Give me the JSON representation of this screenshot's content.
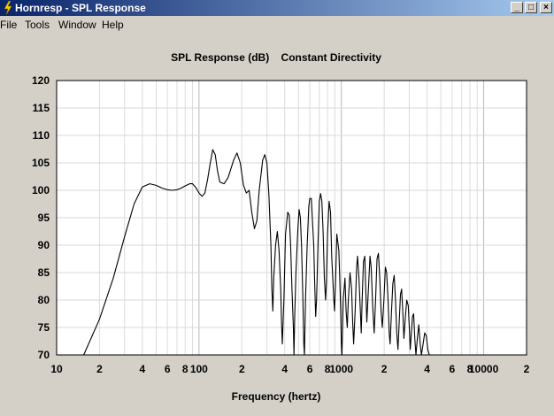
{
  "window": {
    "title": "Hornresp - SPL Response",
    "min_glyph": "_",
    "max_glyph": "□",
    "close_glyph": "×"
  },
  "menu": {
    "items": [
      "File",
      "Tools",
      "Window",
      "Help"
    ]
  },
  "chart_data": {
    "type": "line",
    "title": "SPL Response (dB)    Constant Directivity",
    "xlabel": "Frequency (hertz)",
    "ylabel": "",
    "x_scale": "log",
    "xlim": [
      10,
      20000
    ],
    "ylim": [
      70,
      120
    ],
    "grid": true,
    "y_ticks": [
      120,
      115,
      110,
      105,
      100,
      95,
      90,
      85,
      80,
      75,
      70
    ],
    "x_ticks": [
      {
        "v": 10,
        "label": "10"
      },
      {
        "v": 20,
        "label": "2"
      },
      {
        "v": 40,
        "label": "4"
      },
      {
        "v": 60,
        "label": "6"
      },
      {
        "v": 80,
        "label": "8"
      },
      {
        "v": 100,
        "label": "100"
      },
      {
        "v": 200,
        "label": "2"
      },
      {
        "v": 400,
        "label": "4"
      },
      {
        "v": 600,
        "label": "6"
      },
      {
        "v": 800,
        "label": "8"
      },
      {
        "v": 1000,
        "label": "1000"
      },
      {
        "v": 2000,
        "label": "2"
      },
      {
        "v": 4000,
        "label": "4"
      },
      {
        "v": 6000,
        "label": "6"
      },
      {
        "v": 8000,
        "label": "8"
      },
      {
        "v": 10000,
        "label": "10000"
      },
      {
        "v": 20000,
        "label": "2"
      }
    ],
    "series": [
      {
        "color": "#000000",
        "points": [
          [
            15.5,
            70
          ],
          [
            20,
            76.5
          ],
          [
            25,
            84
          ],
          [
            30,
            91.5
          ],
          [
            35,
            97.5
          ],
          [
            40,
            100.6
          ],
          [
            45,
            101.2
          ],
          [
            50,
            100.9
          ],
          [
            55,
            100.4
          ],
          [
            60,
            100.1
          ],
          [
            65,
            100
          ],
          [
            70,
            100.1
          ],
          [
            75,
            100.4
          ],
          [
            80,
            100.8
          ],
          [
            86,
            101.2
          ],
          [
            90,
            101.2
          ],
          [
            95,
            100.5
          ],
          [
            100,
            99.5
          ],
          [
            105,
            98.9
          ],
          [
            110,
            99.5
          ],
          [
            115,
            102
          ],
          [
            120,
            105
          ],
          [
            125,
            107.4
          ],
          [
            130,
            106.5
          ],
          [
            135,
            103.5
          ],
          [
            140,
            101.5
          ],
          [
            150,
            101.2
          ],
          [
            160,
            102.3
          ],
          [
            175,
            105.5
          ],
          [
            185,
            106.8
          ],
          [
            195,
            105
          ],
          [
            205,
            101
          ],
          [
            215,
            99.5
          ],
          [
            225,
            100
          ],
          [
            235,
            96
          ],
          [
            245,
            93
          ],
          [
            255,
            94.5
          ],
          [
            265,
            100
          ],
          [
            280,
            105.5
          ],
          [
            290,
            106.5
          ],
          [
            300,
            105
          ],
          [
            310,
            99
          ],
          [
            320,
            90
          ],
          [
            325,
            82
          ],
          [
            330,
            78
          ],
          [
            335,
            84
          ],
          [
            345,
            90
          ],
          [
            355,
            92.5
          ],
          [
            365,
            89
          ],
          [
            375,
            82
          ],
          [
            380,
            76
          ],
          [
            385,
            72
          ],
          [
            395,
            80
          ],
          [
            405,
            92
          ],
          [
            420,
            96
          ],
          [
            430,
            95.5
          ],
          [
            440,
            90
          ],
          [
            450,
            82
          ],
          [
            460,
            75
          ],
          [
            465,
            70
          ],
          [
            470,
            77
          ],
          [
            480,
            85
          ],
          [
            495,
            93
          ],
          [
            505,
            96.5
          ],
          [
            515,
            95
          ],
          [
            525,
            90
          ],
          [
            535,
            82
          ],
          [
            545,
            72
          ],
          [
            550,
            70
          ],
          [
            560,
            80
          ],
          [
            575,
            90
          ],
          [
            590,
            97
          ],
          [
            600,
            98.5
          ],
          [
            615,
            98.5
          ],
          [
            625,
            95
          ],
          [
            640,
            90
          ],
          [
            650,
            83
          ],
          [
            660,
            77
          ],
          [
            670,
            80
          ],
          [
            685,
            90
          ],
          [
            700,
            98
          ],
          [
            715,
            99.4
          ],
          [
            730,
            98
          ],
          [
            745,
            92
          ],
          [
            760,
            84
          ],
          [
            775,
            80
          ],
          [
            785,
            83
          ],
          [
            800,
            92
          ],
          [
            820,
            98
          ],
          [
            840,
            96
          ],
          [
            855,
            88
          ],
          [
            870,
            84
          ],
          [
            885,
            80
          ],
          [
            895,
            78
          ],
          [
            910,
            83
          ],
          [
            930,
            92
          ],
          [
            960,
            89
          ],
          [
            975,
            84
          ],
          [
            990,
            78
          ],
          [
            1000,
            72
          ],
          [
            1010,
            70
          ],
          [
            1030,
            80
          ],
          [
            1060,
            84
          ],
          [
            1080,
            78
          ],
          [
            1100,
            75
          ],
          [
            1120,
            80
          ],
          [
            1150,
            85
          ],
          [
            1180,
            82
          ],
          [
            1200,
            76
          ],
          [
            1220,
            72
          ],
          [
            1250,
            78
          ],
          [
            1280,
            86
          ],
          [
            1300,
            88
          ],
          [
            1330,
            84
          ],
          [
            1360,
            78
          ],
          [
            1380,
            74
          ],
          [
            1400,
            80
          ],
          [
            1430,
            87
          ],
          [
            1460,
            88
          ],
          [
            1480,
            83
          ],
          [
            1510,
            76
          ],
          [
            1550,
            82
          ],
          [
            1590,
            88
          ],
          [
            1620,
            86
          ],
          [
            1660,
            79
          ],
          [
            1700,
            74
          ],
          [
            1740,
            80
          ],
          [
            1780,
            87.5
          ],
          [
            1820,
            88.5
          ],
          [
            1860,
            84
          ],
          [
            1900,
            78
          ],
          [
            1940,
            75
          ],
          [
            1990,
            80
          ],
          [
            2040,
            86
          ],
          [
            2080,
            85
          ],
          [
            2130,
            80
          ],
          [
            2170,
            74
          ],
          [
            2200,
            72
          ],
          [
            2250,
            78
          ],
          [
            2300,
            83
          ],
          [
            2350,
            84.5
          ],
          [
            2400,
            80
          ],
          [
            2450,
            74
          ],
          [
            2500,
            71
          ],
          [
            2550,
            76
          ],
          [
            2600,
            81
          ],
          [
            2650,
            82
          ],
          [
            2700,
            78
          ],
          [
            2750,
            73
          ],
          [
            2820,
            77
          ],
          [
            2880,
            80
          ],
          [
            2950,
            79
          ],
          [
            3000,
            75
          ],
          [
            3050,
            71
          ],
          [
            3100,
            74
          ],
          [
            3160,
            77
          ],
          [
            3220,
            77.5
          ],
          [
            3280,
            73
          ],
          [
            3340,
            70
          ],
          [
            3420,
            73
          ],
          [
            3500,
            75.5
          ],
          [
            3580,
            72
          ],
          [
            3650,
            70
          ],
          [
            3750,
            72
          ],
          [
            3850,
            74
          ],
          [
            3950,
            73.5
          ],
          [
            4050,
            71
          ],
          [
            4150,
            70
          ]
        ]
      }
    ]
  }
}
